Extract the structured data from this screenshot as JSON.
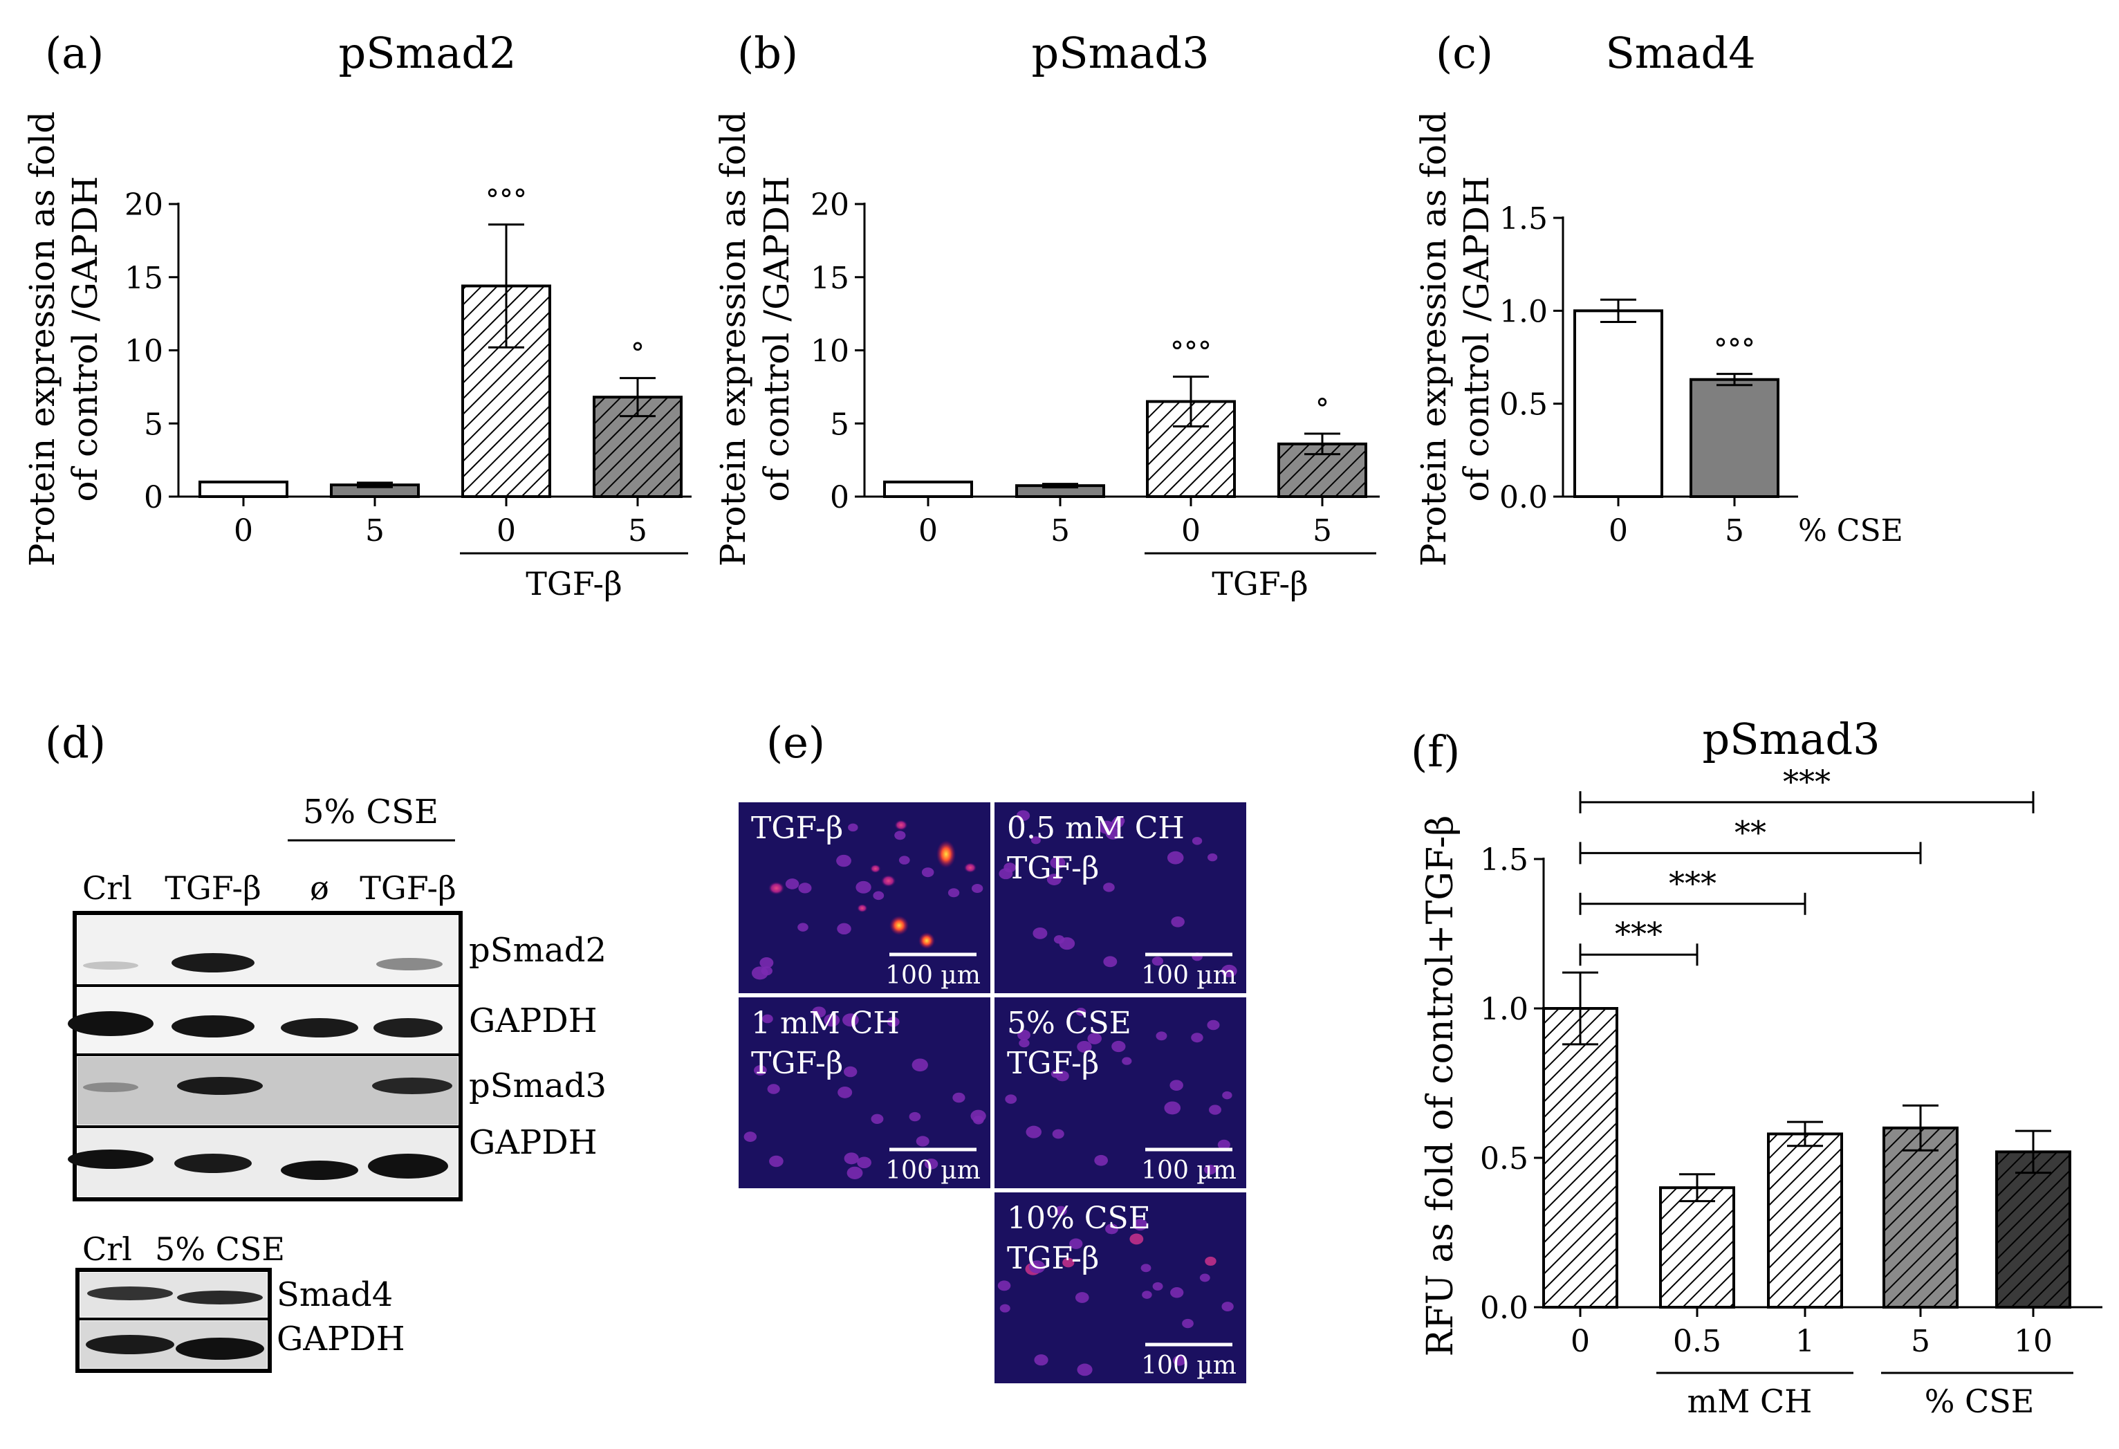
{
  "colors": {
    "white": "#ffffff",
    "light_gray": "#9a9a9a",
    "gray": "#7f7f7f",
    "dark_gray": "#3a3a3a",
    "black": "#000000"
  },
  "chart_data": [
    {
      "panel": "(a)",
      "type": "bar",
      "title": "pSmad2",
      "ylabel_line1": "Protein expression as fold",
      "ylabel_line2": "of control /GAPDH",
      "ylim": [
        0,
        20
      ],
      "yticks": [
        "0",
        "5",
        "10",
        "15",
        "20"
      ],
      "categories": [
        "0",
        "5",
        "0",
        "5"
      ],
      "values": [
        1.0,
        0.8,
        14.4,
        6.8
      ],
      "errors": [
        0,
        0.15,
        4.2,
        1.3
      ],
      "fills": [
        "white",
        "gray",
        "hatch",
        "hatch-gray"
      ],
      "significance": [
        "",
        "",
        "°°°",
        "°"
      ],
      "group_label": "TGF-β"
    },
    {
      "panel": "(b)",
      "type": "bar",
      "title": "pSmad3",
      "ylabel_line1": "Protein expression as fold",
      "ylabel_line2": "of control /GAPDH",
      "ylim": [
        0,
        20
      ],
      "yticks": [
        "0",
        "5",
        "10",
        "15",
        "20"
      ],
      "categories": [
        "0",
        "5",
        "0",
        "5"
      ],
      "values": [
        1.0,
        0.75,
        6.5,
        3.6
      ],
      "errors": [
        0,
        0.12,
        1.7,
        0.7
      ],
      "fills": [
        "white",
        "gray",
        "hatch",
        "hatch-gray"
      ],
      "significance": [
        "",
        "",
        "°°°",
        "°"
      ],
      "group_label": "TGF-β"
    },
    {
      "panel": "(c)",
      "type": "bar",
      "title": "Smad4",
      "ylabel_line1": "Protein expression as fold",
      "ylabel_line2": "of control /GAPDH",
      "ylim": [
        0,
        1.5
      ],
      "yticks": [
        "0.0",
        "0.5",
        "1.0",
        "1.5"
      ],
      "categories": [
        "0",
        "5"
      ],
      "values": [
        1.0,
        0.63
      ],
      "errors": [
        0.06,
        0.03
      ],
      "fills": [
        "white",
        "gray"
      ],
      "significance": [
        "",
        "°°°"
      ],
      "unit_label": "% CSE"
    },
    {
      "panel": "(f)",
      "type": "bar",
      "title": "pSmad3",
      "ylabel": "RFU as fold of control+TGF-β",
      "ylim": [
        0,
        1.5
      ],
      "yticks": [
        "0.0",
        "0.5",
        "1.0",
        "1.5"
      ],
      "categories": [
        "0",
        "0.5",
        "1",
        "5",
        "10"
      ],
      "values": [
        1.0,
        0.4,
        0.58,
        0.6,
        0.52
      ],
      "errors": [
        0.12,
        0.045,
        0.04,
        0.075,
        0.07
      ],
      "fills": [
        "hatch",
        "hatch",
        "hatch",
        "hatch-gray",
        "hatch-dark"
      ],
      "group_labels": [
        "mM CH",
        "% CSE"
      ],
      "brackets": [
        {
          "from": 0,
          "to": 4,
          "y": 1.69,
          "label": "***"
        },
        {
          "from": 0,
          "to": 3,
          "y": 1.52,
          "label": "**"
        },
        {
          "from": 0,
          "to": 2,
          "y": 1.35,
          "label": "***"
        },
        {
          "from": 0,
          "to": 1,
          "y": 1.18,
          "label": "***"
        }
      ]
    }
  ],
  "blot_d": {
    "panel": "(d)",
    "header": "5% CSE",
    "lanes": [
      "Crl",
      "TGF-β",
      "ø",
      "TGF-β"
    ],
    "rows": [
      "pSmad2",
      "GAPDH",
      "pSmad3",
      "GAPDH"
    ],
    "lower_lanes": [
      "Crl",
      "5% CSE"
    ],
    "lower_rows": [
      "Smad4",
      "GAPDH"
    ]
  },
  "micro_e": {
    "panel": "(e)",
    "cells": [
      {
        "line1": "TGF-β",
        "line2": "",
        "scale": "100 µm"
      },
      {
        "line1": "0.5 mM CH",
        "line2": "TGF-β",
        "scale": "100 µm"
      },
      {
        "line1": "1 mM CH",
        "line2": "TGF-β",
        "scale": "100 µm"
      },
      {
        "line1": "5% CSE",
        "line2": "TGF-β",
        "scale": "100 µm"
      },
      {
        "line1": "10% CSE",
        "line2": "TGF-β",
        "scale": "100 µm"
      }
    ]
  }
}
